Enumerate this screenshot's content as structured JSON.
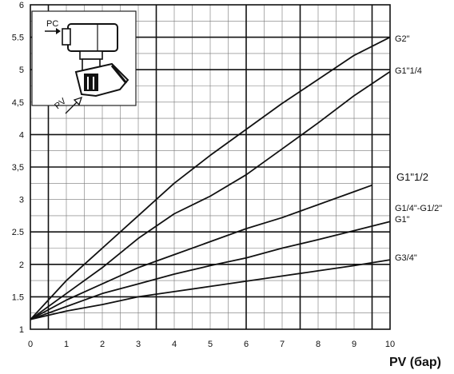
{
  "chart_data": {
    "type": "line",
    "title": "",
    "xlabel": "PV (бар)",
    "ylabel": "",
    "xlim": [
      0,
      10
    ],
    "ylim": [
      1,
      6
    ],
    "xticks": [
      0,
      1,
      2,
      3,
      4,
      5,
      6,
      7,
      8,
      9,
      10
    ],
    "xtick_labels": [
      "0",
      "1",
      "2",
      "3",
      "4",
      "5",
      "6",
      "7",
      "8",
      "9",
      "10"
    ],
    "yticks": [
      1,
      1.5,
      2,
      2.5,
      3,
      3.5,
      4,
      4.5,
      5,
      5.5,
      6
    ],
    "ytick_labels": [
      "1",
      "1.5",
      "2",
      "2.5",
      "3",
      "3,5",
      "4",
      "4,5",
      "5",
      "5.5",
      "6"
    ],
    "grid": true,
    "series": [
      {
        "name": "G2\"",
        "x": [
          0,
          1,
          2,
          3,
          4,
          5,
          6,
          7,
          8,
          9,
          10
        ],
        "y": [
          1.15,
          1.75,
          2.25,
          2.75,
          3.25,
          3.68,
          4.08,
          4.48,
          4.85,
          5.22,
          5.5
        ]
      },
      {
        "name": "G1\"1/4",
        "x": [
          0,
          1,
          2,
          3,
          4,
          5,
          6,
          7,
          8,
          9,
          10
        ],
        "y": [
          1.15,
          1.55,
          1.95,
          2.4,
          2.78,
          3.05,
          3.38,
          3.78,
          4.18,
          4.6,
          4.97
        ]
      },
      {
        "name": "G1\"1/2",
        "x": [
          0,
          1,
          2,
          3,
          4,
          5,
          6,
          7,
          8,
          9,
          9.5
        ],
        "y": [
          1.15,
          1.45,
          1.7,
          1.95,
          2.15,
          2.35,
          2.55,
          2.72,
          2.92,
          3.12,
          3.22
        ]
      },
      {
        "name": "G1/4\"-G1/2\"",
        "x": [
          0,
          1,
          2,
          3,
          4,
          5,
          6,
          7,
          8,
          9,
          10
        ],
        "y": [
          1.15,
          1.35,
          1.55,
          1.7,
          1.85,
          1.98,
          2.1,
          2.25,
          2.38,
          2.52,
          2.66
        ]
      },
      {
        "name": "G1\"",
        "x": [],
        "y": []
      },
      {
        "name": "G3/4\"",
        "x": [
          0,
          1,
          2,
          3,
          4,
          5,
          6,
          7,
          8,
          9,
          10
        ],
        "y": [
          1.15,
          1.28,
          1.38,
          1.5,
          1.58,
          1.66,
          1.74,
          1.82,
          1.9,
          1.98,
          2.07
        ]
      }
    ],
    "inset": {
      "top_label": "PC",
      "side_label": "PV"
    }
  }
}
